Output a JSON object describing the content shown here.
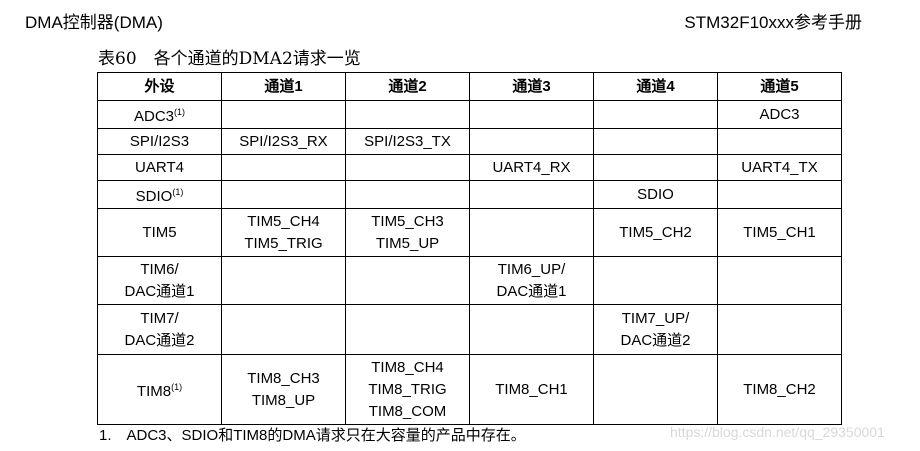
{
  "header": {
    "left": "DMA控制器(DMA)",
    "right": "STM32F10xxx参考手册"
  },
  "caption": "表60　各个通道的DMA2请求一览",
  "table": {
    "columns": [
      "外设",
      "通道1",
      "通道2",
      "通道3",
      "通道4",
      "通道5"
    ],
    "rows": [
      {
        "peripheral": "ADC3",
        "note": "(1)",
        "cells": [
          "",
          "",
          "",
          "",
          "ADC3"
        ]
      },
      {
        "peripheral": "SPI/I2S3",
        "note": "",
        "cells": [
          "SPI/I2S3_RX",
          "SPI/I2S3_TX",
          "",
          "",
          ""
        ]
      },
      {
        "peripheral": "UART4",
        "note": "",
        "cells": [
          "",
          "",
          "UART4_RX",
          "",
          "UART4_TX"
        ]
      },
      {
        "peripheral": "SDIO",
        "note": "(1)",
        "cells": [
          "",
          "",
          "",
          "SDIO",
          ""
        ]
      },
      {
        "peripheral": "TIM5",
        "note": "",
        "cells": [
          "TIM5_CH4\nTIM5_TRIG",
          "TIM5_CH3\nTIM5_UP",
          "",
          "TIM5_CH2",
          "TIM5_CH1"
        ]
      },
      {
        "peripheral": "TIM6/\nDAC通道1",
        "note": "",
        "cells": [
          "",
          "",
          "TIM6_UP/\nDAC通道1",
          "",
          ""
        ]
      },
      {
        "peripheral": "TIM7/\nDAC通道2",
        "note": "",
        "cells": [
          "",
          "",
          "",
          "TIM7_UP/\nDAC通道2",
          ""
        ]
      },
      {
        "peripheral": "TIM8",
        "note": "(1)",
        "cells": [
          "TIM8_CH3\nTIM8_UP",
          "TIM8_CH4\nTIM8_TRIG\nTIM8_COM",
          "TIM8_CH1",
          "",
          "TIM8_CH2"
        ]
      }
    ]
  },
  "footnote": "1.　ADC3、SDIO和TIM8的DMA请求只在大容量的产品中存在。",
  "watermark": "https://blog.csdn.net/qq_29350001"
}
